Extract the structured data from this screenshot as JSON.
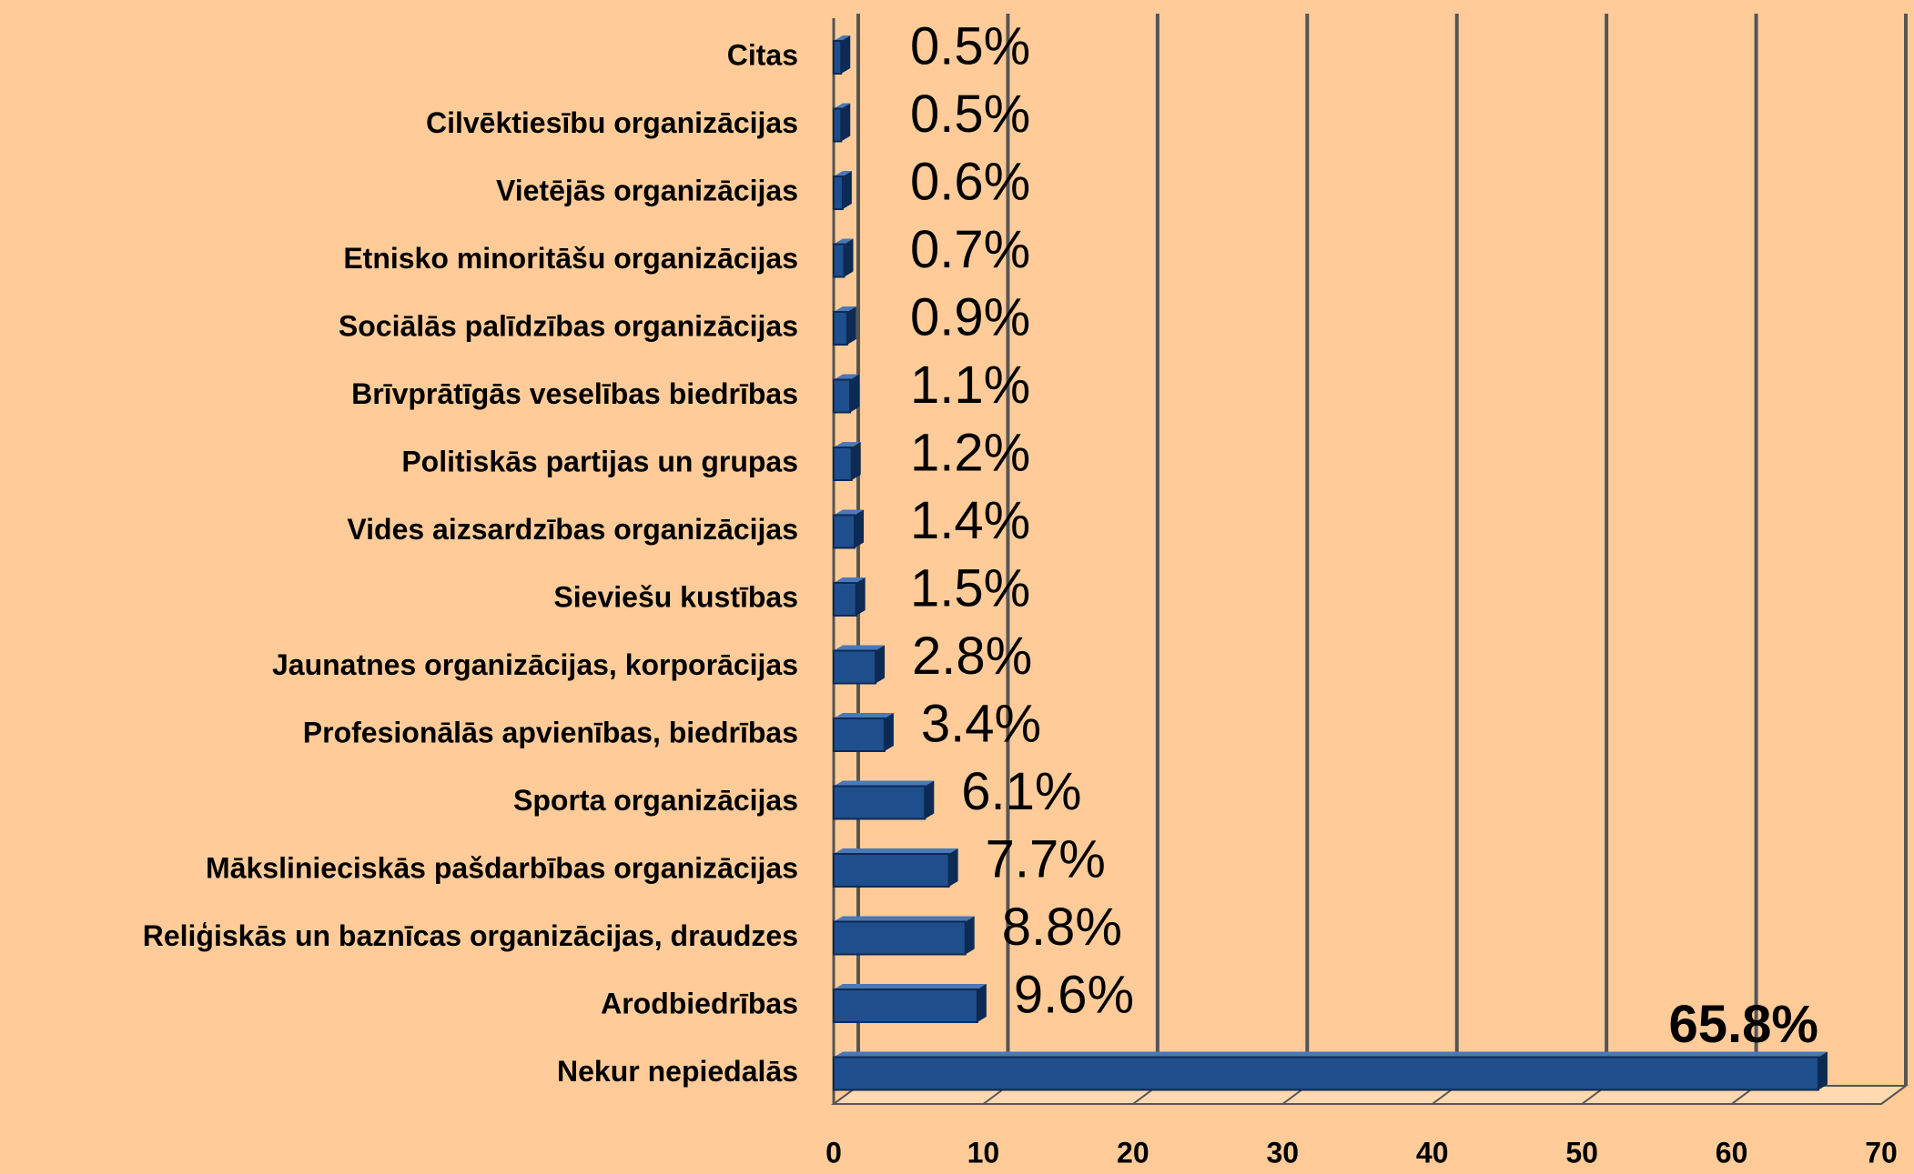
{
  "chart_data": {
    "type": "bar",
    "orientation": "horizontal",
    "categories": [
      "Citas",
      "Cilvēktiesību organizācijas",
      "Vietējās organizācijas",
      "Etnisko minoritāšu organizācijas",
      "Sociālās palīdzības organizācijas",
      "Brīvprātīgās veselības biedrības",
      "Politiskās partijas un grupas",
      "Vides aizsardzības organizācijas",
      "Sieviešu kustības",
      "Jaunatnes organizācijas, korporācijas",
      "Profesionālās apvienības, biedrības",
      "Sporta organizācijas",
      "Mākslinieciskās pašdarbības organizācijas",
      "Reliģiskās un baznīcas organizācijas, draudzes",
      "Arodbiedrības",
      "Nekur nepiedalās"
    ],
    "values": [
      0.5,
      0.5,
      0.6,
      0.7,
      0.9,
      1.1,
      1.2,
      1.4,
      1.5,
      2.8,
      3.4,
      6.1,
      7.7,
      8.8,
      9.6,
      65.8
    ],
    "value_labels": [
      "0.5%",
      "0.5%",
      "0.6%",
      "0.7%",
      "0.9%",
      "1.1%",
      "1.2%",
      "1.4%",
      "1.5%",
      "2.8%",
      "3.4%",
      "6.1%",
      "7.7%",
      "8.8%",
      "9.6%",
      "65.8%"
    ],
    "color": "#1f4e8c",
    "xlim": [
      0,
      70
    ],
    "xticks": [
      0,
      10,
      20,
      30,
      40,
      50,
      60,
      70
    ],
    "grid": true
  }
}
